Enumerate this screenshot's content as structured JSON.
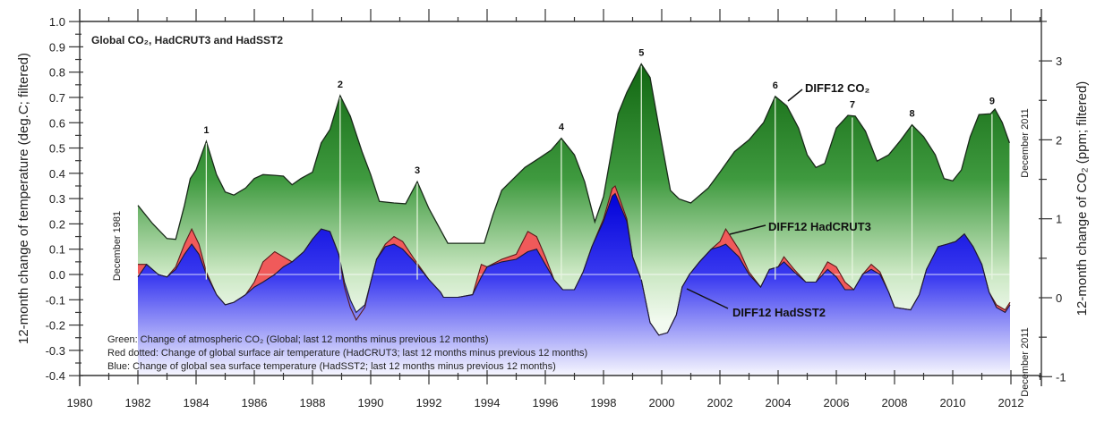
{
  "chart_data": {
    "type": "area",
    "title": "Global CO₂, HadCRUT3 and HadSST2",
    "ylabel": "12-month change of temperature (deg.C; filtered)",
    "ylabel_right": "12-month change of CO₂ (ppm; filtered)",
    "xlim": [
      1980,
      2013
    ],
    "ylim": [
      -0.4,
      1.0
    ],
    "ylim_right": [
      -1,
      3.5
    ],
    "x_ticks": [
      1980,
      1982,
      1984,
      1986,
      1988,
      1990,
      1992,
      1994,
      1996,
      1998,
      2000,
      2002,
      2004,
      2006,
      2008,
      2010,
      2012
    ],
    "y_ticks": [
      "-0.4",
      "-0.3",
      "-0.2",
      "-0.1",
      "0.0",
      "0.1",
      "0.2",
      "0.3",
      "0.4",
      "0.5",
      "0.6",
      "0.7",
      "0.8",
      "0.9",
      "1.0"
    ],
    "y_ticks_right": [
      "-1",
      "0",
      "1",
      "2",
      "3"
    ],
    "grid": false,
    "colors": {
      "co2": "#1f7a1f",
      "hadcrut3": "#f05a5a",
      "hadsst2": "#1010e0"
    },
    "series": [
      {
        "name": "DIFF12 CO₂",
        "axis": "right",
        "x": [
          1982.0,
          1982.5,
          1983.0,
          1983.3,
          1983.6,
          1983.8,
          1984.0,
          1984.35,
          1984.7,
          1985.0,
          1985.3,
          1985.7,
          1986.0,
          1986.3,
          1986.7,
          1987.0,
          1987.3,
          1987.6,
          1988.0,
          1988.3,
          1988.6,
          1988.95,
          1989.3,
          1989.7,
          1990.0,
          1990.3,
          1990.8,
          1991.2,
          1991.6,
          1992.0,
          1992.65,
          1993.0,
          1993.5,
          1993.9,
          1994.2,
          1994.5,
          1994.8,
          1995.3,
          1995.8,
          1996.2,
          1996.55,
          1997.0,
          1997.35,
          1997.7,
          1998.0,
          1998.5,
          1998.8,
          1999.3,
          1999.6,
          2000.0,
          2000.3,
          2000.6,
          2001.0,
          2001.6,
          2002.0,
          2002.5,
          2003.0,
          2003.5,
          2003.9,
          2004.3,
          2004.7,
          2005.0,
          2005.3,
          2005.6,
          2006.0,
          2006.4,
          2006.65,
          2007.0,
          2007.4,
          2007.8,
          2008.2,
          2008.6,
          2009.0,
          2009.4,
          2009.7,
          2010.0,
          2010.3,
          2010.6,
          2010.9,
          2011.3,
          2011.45,
          2011.7,
          2011.95
        ],
        "values": [
          1.17,
          0.94,
          0.75,
          0.74,
          1.17,
          1.51,
          1.62,
          1.98,
          1.56,
          1.34,
          1.3,
          1.39,
          1.51,
          1.56,
          1.55,
          1.54,
          1.43,
          1.51,
          1.59,
          1.96,
          2.13,
          2.56,
          2.3,
          1.85,
          1.56,
          1.22,
          1.2,
          1.19,
          1.47,
          1.13,
          0.69,
          0.69,
          0.69,
          0.69,
          1.05,
          1.36,
          1.47,
          1.65,
          1.77,
          1.87,
          2.02,
          1.81,
          1.47,
          0.96,
          1.28,
          2.33,
          2.6,
          2.96,
          2.79,
          1.96,
          1.36,
          1.25,
          1.2,
          1.39,
          1.59,
          1.85,
          2.0,
          2.22,
          2.55,
          2.43,
          2.15,
          1.81,
          1.65,
          1.7,
          2.15,
          2.31,
          2.3,
          2.11,
          1.73,
          1.81,
          1.99,
          2.19,
          2.04,
          1.81,
          1.51,
          1.48,
          1.62,
          2.04,
          2.32,
          2.33,
          2.39,
          2.22,
          1.96
        ]
      },
      {
        "name": "DIFF12 HadCRUT3",
        "axis": "left",
        "x": [
          1982.0,
          1982.3,
          1982.7,
          1983.0,
          1983.3,
          1983.6,
          1983.85,
          1984.1,
          1984.35,
          1984.7,
          1985.0,
          1985.3,
          1985.7,
          1986.0,
          1986.3,
          1986.7,
          1987.0,
          1987.3,
          1987.7,
          1988.0,
          1988.3,
          1988.6,
          1988.9,
          1989.1,
          1989.3,
          1989.5,
          1989.8,
          1990.0,
          1990.2,
          1990.5,
          1990.8,
          1991.1,
          1991.5,
          1992.0,
          1992.4,
          1992.5,
          1993.0,
          1993.5,
          1993.8,
          1994.0,
          1994.5,
          1995.0,
          1995.4,
          1995.7,
          1996.0,
          1996.3,
          1996.6,
          1997.0,
          1997.3,
          1997.6,
          1998.0,
          1998.3,
          1998.4,
          1998.8,
          1999.0,
          1999.3,
          1999.6,
          1999.9,
          2000.2,
          2000.5,
          2000.7,
          2000.95,
          2001.3,
          2001.7,
          2002.0,
          2002.2,
          2002.65,
          2003.0,
          2003.4,
          2003.7,
          2004.0,
          2004.2,
          2004.55,
          2004.95,
          2005.3,
          2005.7,
          2006.0,
          2006.3,
          2006.6,
          2006.9,
          2007.2,
          2007.5,
          2007.8,
          2008.0,
          2008.55,
          2008.85,
          2009.1,
          2009.5,
          2009.8,
          2010.1,
          2010.4,
          2010.7,
          2011.0,
          2011.25,
          2011.5,
          2011.8,
          2011.97
        ],
        "values": [
          0.04,
          0.04,
          0.0,
          -0.01,
          0.03,
          0.12,
          0.18,
          0.12,
          0.01,
          -0.08,
          -0.12,
          -0.11,
          -0.08,
          -0.03,
          0.05,
          0.09,
          0.07,
          0.05,
          0.09,
          0.14,
          0.18,
          0.17,
          0.08,
          -0.05,
          -0.13,
          -0.18,
          -0.13,
          -0.03,
          0.06,
          0.12,
          0.15,
          0.13,
          0.06,
          -0.02,
          -0.07,
          -0.09,
          -0.09,
          -0.08,
          0.04,
          0.03,
          0.06,
          0.08,
          0.17,
          0.15,
          0.07,
          -0.02,
          -0.06,
          -0.06,
          0.01,
          0.11,
          0.22,
          0.34,
          0.35,
          0.22,
          0.07,
          -0.02,
          -0.19,
          -0.24,
          -0.23,
          -0.16,
          -0.05,
          0.0,
          0.05,
          0.1,
          0.13,
          0.18,
          0.1,
          0.01,
          -0.05,
          0.02,
          0.03,
          0.07,
          0.02,
          -0.03,
          -0.03,
          0.05,
          0.03,
          -0.03,
          -0.06,
          0.0,
          0.04,
          0.01,
          -0.07,
          -0.13,
          -0.14,
          -0.08,
          0.02,
          0.11,
          0.12,
          0.13,
          0.16,
          0.11,
          0.04,
          -0.07,
          -0.12,
          -0.14,
          -0.11
        ]
      },
      {
        "name": "DIFF12 HadSST2",
        "axis": "left",
        "x": [
          1982.0,
          1982.3,
          1982.7,
          1983.0,
          1983.3,
          1983.6,
          1983.85,
          1984.1,
          1984.35,
          1984.7,
          1985.0,
          1985.3,
          1985.7,
          1986.0,
          1986.3,
          1986.7,
          1987.0,
          1987.3,
          1987.7,
          1988.0,
          1988.3,
          1988.6,
          1988.9,
          1989.1,
          1989.3,
          1989.5,
          1989.8,
          1990.0,
          1990.2,
          1990.5,
          1990.8,
          1991.1,
          1991.5,
          1992.0,
          1992.4,
          1992.5,
          1993.0,
          1993.5,
          1993.8,
          1994.0,
          1994.5,
          1995.0,
          1995.4,
          1995.7,
          1996.0,
          1996.3,
          1996.6,
          1997.0,
          1997.3,
          1997.6,
          1998.0,
          1998.3,
          1998.4,
          1998.8,
          1999.0,
          1999.3,
          1999.6,
          1999.9,
          2000.2,
          2000.5,
          2000.7,
          2000.95,
          2001.3,
          2001.7,
          2002.0,
          2002.2,
          2002.65,
          2003.0,
          2003.4,
          2003.7,
          2004.0,
          2004.2,
          2004.55,
          2004.95,
          2005.3,
          2005.7,
          2006.0,
          2006.3,
          2006.6,
          2006.9,
          2007.2,
          2007.5,
          2007.8,
          2008.0,
          2008.55,
          2008.85,
          2009.1,
          2009.5,
          2009.8,
          2010.1,
          2010.4,
          2010.7,
          2011.0,
          2011.25,
          2011.5,
          2011.8,
          2011.97
        ],
        "values": [
          -0.01,
          0.04,
          0.0,
          -0.01,
          0.02,
          0.08,
          0.12,
          0.08,
          0.0,
          -0.08,
          -0.12,
          -0.11,
          -0.08,
          -0.05,
          -0.03,
          0.0,
          0.03,
          0.05,
          0.09,
          0.14,
          0.18,
          0.17,
          0.08,
          -0.03,
          -0.1,
          -0.15,
          -0.12,
          -0.03,
          0.06,
          0.11,
          0.12,
          0.1,
          0.05,
          -0.02,
          -0.07,
          -0.09,
          -0.09,
          -0.08,
          -0.01,
          0.03,
          0.05,
          0.06,
          0.09,
          0.1,
          0.04,
          -0.02,
          -0.06,
          -0.06,
          0.01,
          0.11,
          0.21,
          0.31,
          0.32,
          0.21,
          0.07,
          -0.02,
          -0.19,
          -0.24,
          -0.23,
          -0.16,
          -0.05,
          0.0,
          0.05,
          0.1,
          0.11,
          0.12,
          0.07,
          0.0,
          -0.05,
          0.02,
          0.03,
          0.05,
          0.01,
          -0.03,
          -0.03,
          0.02,
          -0.01,
          -0.06,
          -0.06,
          0.0,
          0.02,
          0.0,
          -0.07,
          -0.13,
          -0.14,
          -0.08,
          0.02,
          0.11,
          0.12,
          0.13,
          0.16,
          0.11,
          0.04,
          -0.07,
          -0.13,
          -0.15,
          -0.12
        ]
      }
    ],
    "peaks": [
      {
        "label": "1",
        "x": 1984.35
      },
      {
        "label": "2",
        "x": 1988.95
      },
      {
        "label": "3",
        "x": 1991.6
      },
      {
        "label": "4",
        "x": 1996.55
      },
      {
        "label": "5",
        "x": 1999.3
      },
      {
        "label": "6",
        "x": 2003.9
      },
      {
        "label": "7",
        "x": 2006.55
      },
      {
        "label": "8",
        "x": 2008.6
      },
      {
        "label": "9",
        "x": 2011.35
      }
    ],
    "annotations": {
      "co2": "DIFF12 CO₂",
      "hadcrut3": "DIFF12 HadCRUT3",
      "hadsst2": "DIFF12 HadSST2",
      "start": "December 1981",
      "end_co2": "December 2011",
      "end_temp": "December 2011"
    },
    "legend_notes": [
      "Green: Change of atmospheric CO₂ (Global; last 12 months minus previous 12 months)",
      "Red dotted: Change of global surface air temperature (HadCRUT3; last 12 months minus previous 12 months)",
      "Blue: Change of global sea surface temperature (HadSST2; last 12 months minus previous 12 months)"
    ]
  }
}
